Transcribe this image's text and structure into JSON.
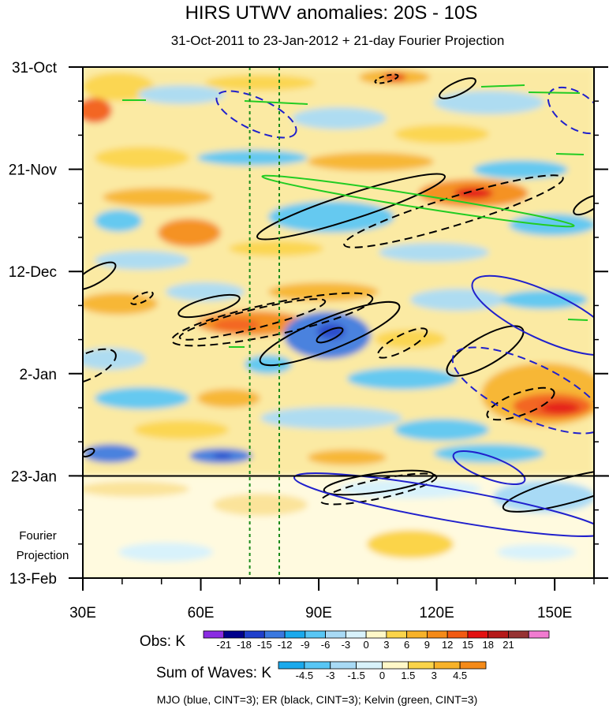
{
  "chart_data": {
    "type": "heatmap",
    "title": "HIRS UTWV anomalies: 20S - 10S",
    "subtitle": "31-Oct-2011 to 23-Jan-2012 + 21-day Fourier Projection",
    "xlabel": "",
    "ylabel": "",
    "x_ticks": [
      "30E",
      "60E",
      "90E",
      "120E",
      "150E"
    ],
    "x_tick_values": [
      30,
      60,
      90,
      120,
      150
    ],
    "xlim": [
      30,
      160
    ],
    "y_ticks": [
      "31-Oct",
      "21-Nov",
      "12-Dec",
      "2-Jan",
      "23-Jan",
      "13-Feb"
    ],
    "y_tick_days": [
      0,
      21,
      42,
      63,
      84,
      105
    ],
    "ylim_days": [
      0,
      105
    ],
    "observation_end_label": "23-Jan",
    "projection_label": "Fourier Projection",
    "reference_lines_lon": [
      72.5,
      80
    ],
    "obs_colorbar": {
      "label": "Obs: K",
      "levels": [
        "-21",
        "-18",
        "-15",
        "-12",
        "-9",
        "-6",
        "-3",
        "0",
        "3",
        "6",
        "9",
        "12",
        "15",
        "18",
        "21"
      ],
      "colors": [
        "#8a2be2",
        "#00008b",
        "#1f3fcc",
        "#3a78e0",
        "#1aa9ec",
        "#58c6f4",
        "#a8daf5",
        "#d8f2fb",
        "#fff8c8",
        "#fbd44a",
        "#f7b229",
        "#f58a18",
        "#f25a12",
        "#e31010",
        "#b51919",
        "#963232",
        "#f17bd0"
      ]
    },
    "waves_colorbar": {
      "label": "Sum of Waves: K",
      "levels": [
        "-4.5",
        "-3",
        "-1.5",
        "0",
        "1.5",
        "3",
        "4.5"
      ],
      "colors": [
        "#1aa9ec",
        "#58c6f4",
        "#a8daf5",
        "#d8f2fb",
        "#fff8c8",
        "#fbd44a",
        "#f7b229",
        "#f58a18"
      ]
    },
    "contour_series": [
      {
        "name": "MJO",
        "color": "#2020cc",
        "cint": 3
      },
      {
        "name": "ER",
        "color": "#000000",
        "cint": 3
      },
      {
        "name": "Kelvin",
        "color": "#22cc22",
        "cint": 3
      }
    ],
    "footer": "MJO (blue, CINT=3); ER (black, CINT=3); Kelvin (green, CINT=3)"
  }
}
